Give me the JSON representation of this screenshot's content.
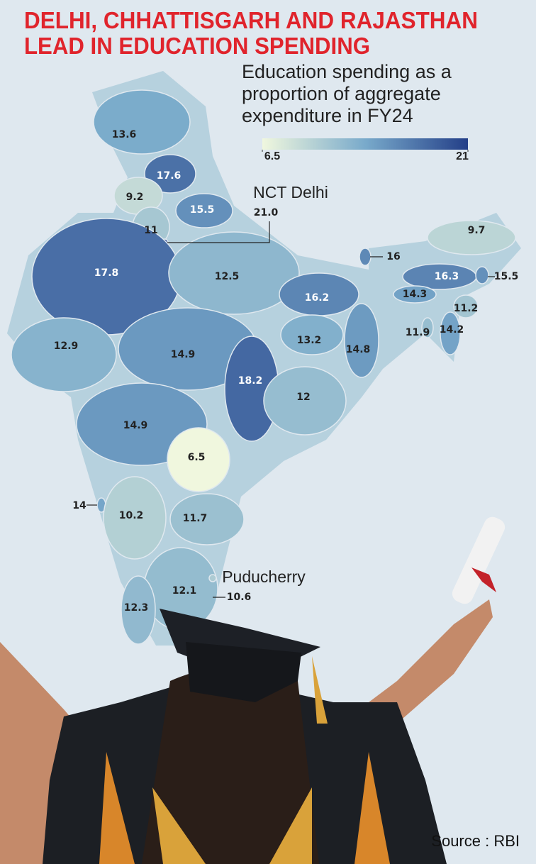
{
  "chart_data": {
    "type": "choropleth",
    "title": [
      "DELHI, CHHATTISGARH AND RAJASTHAN",
      "LEAD IN EDUCATION SPENDING"
    ],
    "subtitle": [
      "Education spending as a",
      "proportion of aggregate",
      "expenditure in FY24"
    ],
    "colorbar": {
      "range": [
        6.5,
        21
      ],
      "ticks": [
        6.5,
        21
      ],
      "colors": [
        "#f0f7de",
        "#79aacb",
        "#233f88"
      ]
    },
    "categories": [
      null,
      null,
      null,
      null,
      null,
      "NCT Delhi",
      null,
      null,
      null,
      null,
      null,
      null,
      null,
      null,
      null,
      null,
      null,
      null,
      null,
      null,
      null,
      null,
      null,
      null,
      null,
      null,
      null,
      null,
      null,
      "Puducherry",
      null
    ],
    "values": [
      13.6,
      17.6,
      9.2,
      15.5,
      11,
      21.0,
      17.8,
      12.5,
      16.2,
      16,
      9.7,
      16.3,
      15.5,
      14.3,
      11.2,
      14.2,
      11.9,
      13.2,
      14.8,
      12.9,
      14.9,
      18.2,
      12,
      14.9,
      6.5,
      14,
      10.2,
      11.7,
      12.1,
      10.6,
      12.3
    ],
    "value_labels": [
      "13.6",
      "17.6",
      "9.2",
      "15.5",
      "11",
      "21.0",
      "17.8",
      "12.5",
      "16.2",
      "16",
      "9.7",
      "16.3",
      "15.5",
      "14.3",
      "11.2",
      "14.2",
      "11.9",
      "13.2",
      "14.8",
      "12.9",
      "14.9",
      "18.2",
      "12",
      "14.9",
      "6.5",
      "14",
      "10.2",
      "11.7",
      "12.1",
      "10.6",
      "12.3"
    ],
    "source": "Source : RBI"
  }
}
